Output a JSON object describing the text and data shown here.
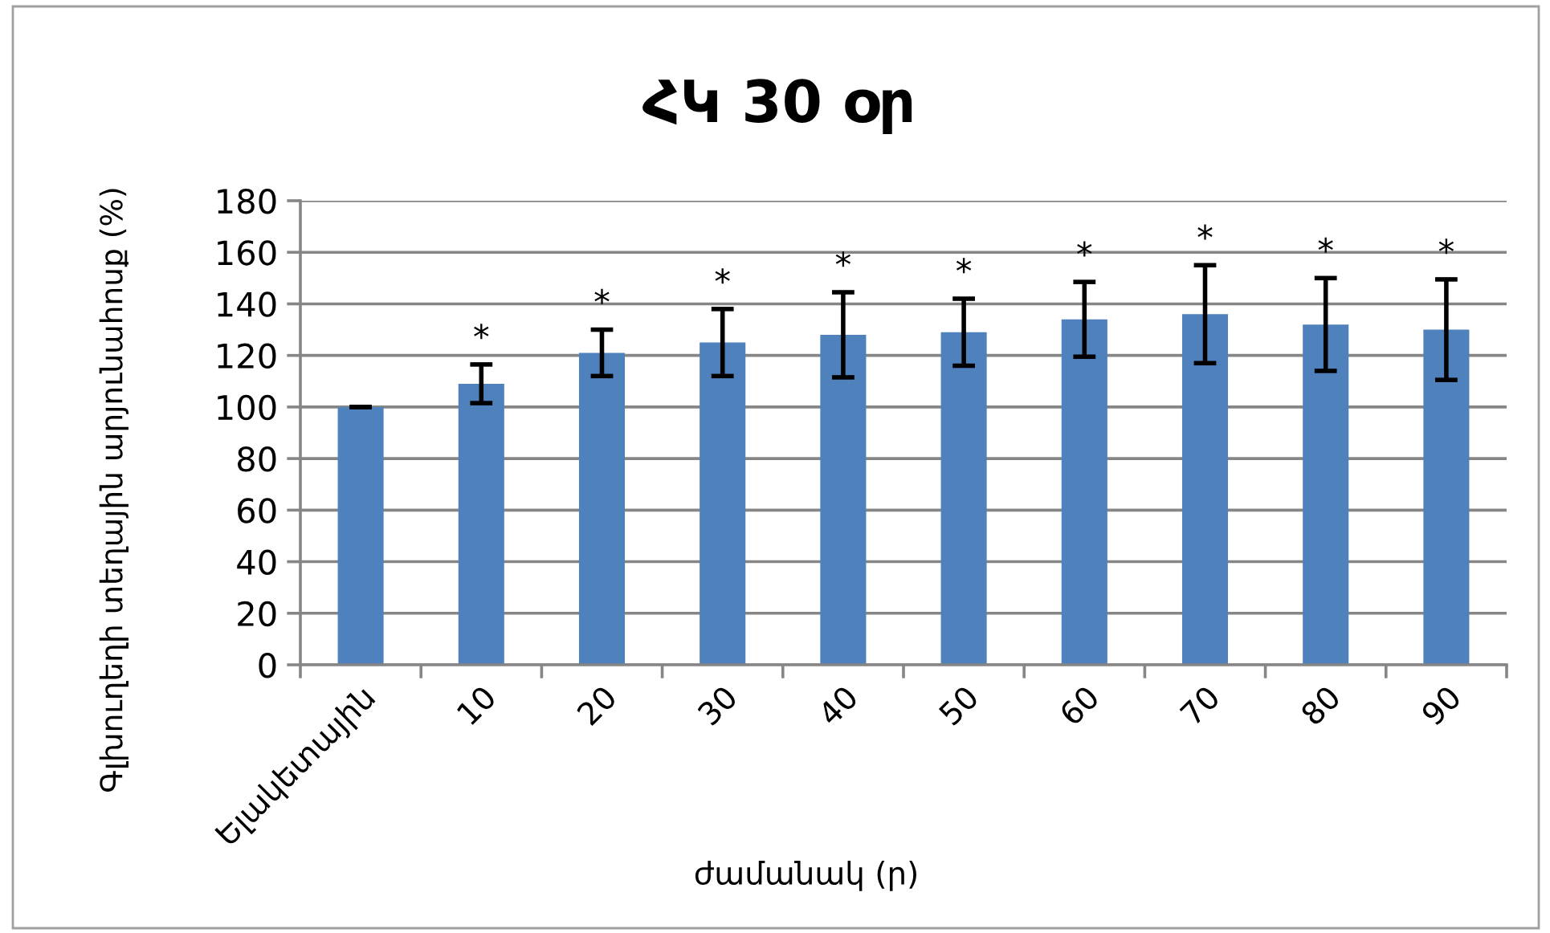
{
  "chart_data": {
    "type": "bar",
    "title": "ՀԿ 30 օր",
    "xlabel": "ժամանակ (ր)",
    "ylabel": "Գլխուղեղի տեղային արյունահոսք (%)",
    "categories": [
      "Ելակետային",
      "10",
      "20",
      "30",
      "40",
      "50",
      "60",
      "70",
      "80",
      "90"
    ],
    "values": [
      100,
      109,
      121,
      125,
      128,
      129,
      134,
      136,
      132,
      130
    ],
    "errors": [
      0,
      7.5,
      9,
      13,
      16.5,
      13,
      14.5,
      19,
      18,
      19.5
    ],
    "color": "#4f81bd",
    "ylim": [
      0,
      180
    ],
    "yticks": [
      0,
      20,
      40,
      60,
      80,
      100,
      120,
      140,
      160,
      180
    ],
    "grid": "y",
    "annotations": [
      {
        "text": "*",
        "x": "10",
        "y": 116.5
      },
      {
        "text": "*",
        "x": "20",
        "y": 130
      },
      {
        "text": "*",
        "x": "30",
        "y": 138
      },
      {
        "text": "*",
        "x": "40",
        "y": 144.5
      },
      {
        "text": "*",
        "x": "50",
        "y": 142
      },
      {
        "text": "*",
        "x": "60",
        "y": 148.5
      },
      {
        "text": "*",
        "x": "70",
        "y": 155
      },
      {
        "text": "*",
        "x": "80",
        "y": 150
      },
      {
        "text": "*",
        "x": "90",
        "y": 149.5
      }
    ]
  }
}
